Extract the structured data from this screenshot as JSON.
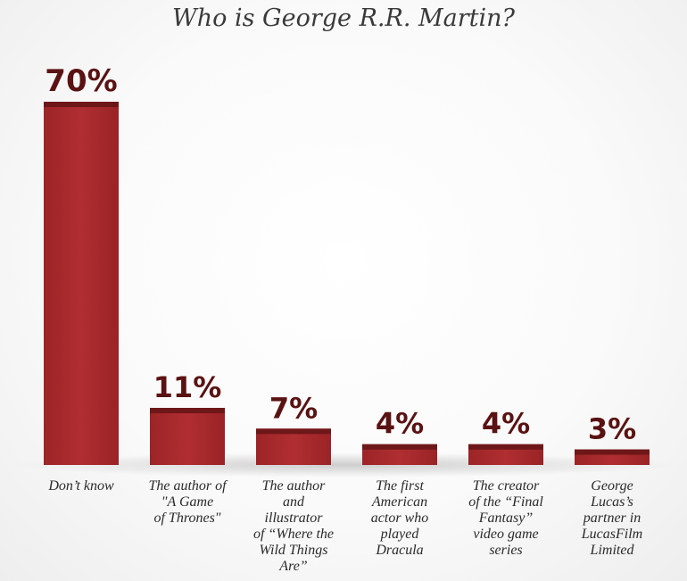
{
  "chart_data": {
    "type": "bar",
    "title": "Who is George R.R. Martin?",
    "xlabel": "",
    "ylabel": "",
    "ylim": [
      0,
      70
    ],
    "grid": false,
    "legend": "none",
    "categories": [
      [
        "Don’t know"
      ],
      [
        "The author of",
        "\"A Game",
        "of Thrones\""
      ],
      [
        "The author",
        "and",
        "illustrator",
        "of “Where the",
        "Wild Things",
        "Are”"
      ],
      [
        "The first",
        "American",
        "actor who",
        "played",
        "Dracula"
      ],
      [
        "The creator",
        "of the “Final",
        "Fantasy”",
        "video game",
        "series"
      ],
      [
        "George",
        "Lucas’s",
        "partner in",
        "LucasFilm",
        "Limited"
      ]
    ],
    "values": [
      70,
      11,
      7,
      4,
      4,
      3
    ],
    "value_labels": [
      "70%",
      "11%",
      "7%",
      "4%",
      "4%",
      "3%"
    ],
    "colors": {
      "bar": "#a3282b",
      "bar_top": "#6e1719",
      "label": "#5a1212"
    }
  }
}
